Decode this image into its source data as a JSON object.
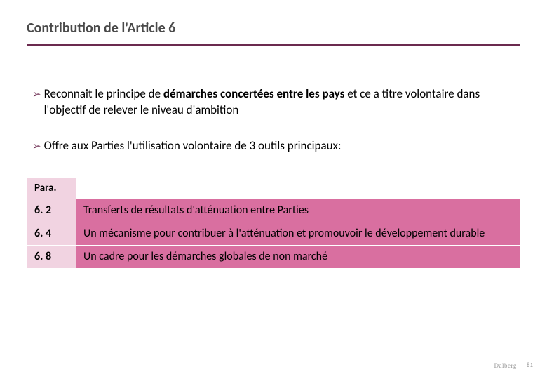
{
  "title": "Contribution de l'Article 6",
  "bullets": [
    {
      "pre": "Reconnait le principe de ",
      "bold": "démarches concertées entre les pays",
      "post": " et ce a titre volontaire dans l'objectif de relever  le  niveau  d'ambition"
    },
    {
      "pre": "Offre aux Parties l'utilisation volontaire de 3 outils principaux:",
      "bold": "",
      "post": ""
    }
  ],
  "table": {
    "header": "Para.",
    "rows": [
      {
        "para": "6. 2",
        "desc": "Transferts de résultats d'atténuation entre Parties"
      },
      {
        "para": "6. 4",
        "desc": "Un mécanisme pour contribuer à l'atténuation et promouvoir le développement durable"
      },
      {
        "para": "6. 8",
        "desc": "Un cadre pour les démarches globales de non marché"
      }
    ]
  },
  "footer": {
    "brand": "Dalberg",
    "page": "81"
  },
  "colors": {
    "accent": "#6b2a4f",
    "lightPink": "#f1d3e1",
    "rowPink": "#d96fa0"
  }
}
